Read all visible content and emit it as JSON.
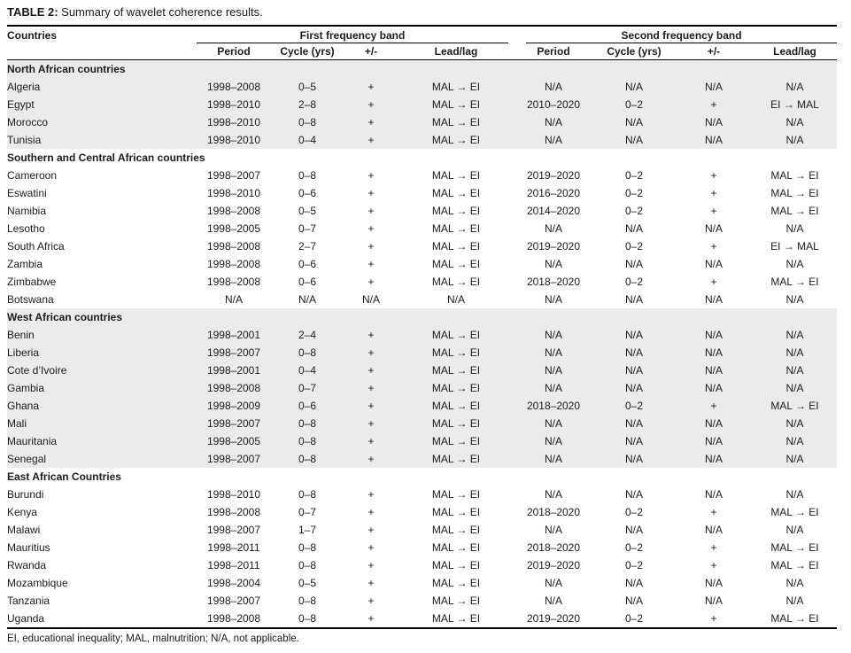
{
  "title": {
    "label": "TABLE 2:",
    "text": " Summary of wavelet coherence results."
  },
  "table": {
    "countries_header": "Countries",
    "band_headers": [
      "First frequency band",
      "Second frequency band"
    ],
    "sub_headers": [
      "Period",
      "Cycle (yrs)",
      "+/-",
      "Lead/lag",
      "Period",
      "Cycle (yrs)",
      "+/-",
      "Lead/lag"
    ],
    "sections": [
      {
        "name": "North African countries",
        "shaded": true,
        "rows": [
          {
            "country": "Algeria",
            "cells": [
              "1998–2008",
              "0–5",
              "+",
              "MAL → EI",
              "N/A",
              "N/A",
              "N/A",
              "N/A"
            ]
          },
          {
            "country": "Egypt",
            "cells": [
              "1998–2010",
              "2–8",
              "+",
              "MAL → EI",
              "2010–2020",
              "0–2",
              "+",
              "EI → MAL"
            ]
          },
          {
            "country": "Morocco",
            "cells": [
              "1998–2010",
              "0–8",
              "+",
              "MAL → EI",
              "N/A",
              "N/A",
              "N/A",
              "N/A"
            ]
          },
          {
            "country": "Tunisia",
            "cells": [
              "1998–2010",
              "0–4",
              "+",
              "MAL → EI",
              "N/A",
              "N/A",
              "N/A",
              "N/A"
            ]
          }
        ]
      },
      {
        "name": "Southern and Central African countries",
        "shaded": false,
        "rows": [
          {
            "country": "Cameroon",
            "cells": [
              "1998–2007",
              "0–8",
              "+",
              "MAL → EI",
              "2019–2020",
              "0–2",
              "+",
              "MAL → EI"
            ]
          },
          {
            "country": "Eswatini",
            "cells": [
              "1998–2010",
              "0–6",
              "+",
              "MAL → EI",
              "2016–2020",
              "0–2",
              "+",
              "MAL → EI"
            ]
          },
          {
            "country": "Namibia",
            "cells": [
              "1998–2008",
              "0–5",
              "+",
              "MAL → EI",
              "2014–2020",
              "0–2",
              "+",
              "MAL → EI"
            ]
          },
          {
            "country": "Lesotho",
            "cells": [
              "1998–2005",
              "0–7",
              "+",
              "MAL → EI",
              "N/A",
              "N/A",
              "N/A",
              "N/A"
            ]
          },
          {
            "country": "South Africa",
            "cells": [
              "1998–2008",
              "2–7",
              "+",
              "MAL → EI",
              "2019–2020",
              "0–2",
              "+",
              "EI → MAL"
            ]
          },
          {
            "country": "Zambia",
            "cells": [
              "1998–2008",
              "0–6",
              "+",
              "MAL → EI",
              "N/A",
              "N/A",
              "N/A",
              "N/A"
            ]
          },
          {
            "country": "Zimbabwe",
            "cells": [
              "1998–2008",
              "0–6",
              "+",
              "MAL → EI",
              "2018–2020",
              "0–2",
              "+",
              "MAL → EI"
            ]
          },
          {
            "country": "Botswana",
            "cells": [
              "N/A",
              "N/A",
              "N/A",
              "N/A",
              "N/A",
              "N/A",
              "N/A",
              "N/A"
            ]
          }
        ]
      },
      {
        "name": "West African countries",
        "shaded": true,
        "rows": [
          {
            "country": "Benin",
            "cells": [
              "1998–2001",
              "2–4",
              "+",
              "MAL → EI",
              "N/A",
              "N/A",
              "N/A",
              "N/A"
            ]
          },
          {
            "country": "Liberia",
            "cells": [
              "1998–2007",
              "0–8",
              "+",
              "MAL → EI",
              "N/A",
              "N/A",
              "N/A",
              "N/A"
            ]
          },
          {
            "country": "Cote d’Ivoire",
            "cells": [
              "1998–2001",
              "0–4",
              "+",
              "MAL → EI",
              "N/A",
              "N/A",
              "N/A",
              "N/A"
            ]
          },
          {
            "country": "Gambia",
            "cells": [
              "1998–2008",
              "0–7",
              "+",
              "MAL → EI",
              "N/A",
              "N/A",
              "N/A",
              "N/A"
            ]
          },
          {
            "country": "Ghana",
            "cells": [
              "1998–2009",
              "0–6",
              "+",
              "MAL → EI",
              "2018–2020",
              "0–2",
              "+",
              "MAL → EI"
            ]
          },
          {
            "country": "Mali",
            "cells": [
              "1998–2007",
              "0–8",
              "+",
              "MAL → EI",
              "N/A",
              "N/A",
              "N/A",
              "N/A"
            ]
          },
          {
            "country": "Mauritania",
            "cells": [
              "1998–2005",
              "0–8",
              "+",
              "MAL → EI",
              "N/A",
              "N/A",
              "N/A",
              "N/A"
            ]
          },
          {
            "country": "Senegal",
            "cells": [
              "1998–2007",
              "0–8",
              "+",
              "MAL → EI",
              "N/A",
              "N/A",
              "N/A",
              "N/A"
            ]
          }
        ]
      },
      {
        "name": "East African Countries",
        "shaded": false,
        "rows": [
          {
            "country": "Burundi",
            "cells": [
              "1998–2010",
              "0–8",
              "+",
              "MAL → EI",
              "N/A",
              "N/A",
              "N/A",
              "N/A"
            ]
          },
          {
            "country": "Kenya",
            "cells": [
              "1998–2008",
              "0–7",
              "+",
              "MAL → EI",
              "2018–2020",
              "0–2",
              "+",
              "MAL → EI"
            ]
          },
          {
            "country": "Malawi",
            "cells": [
              "1998–2007",
              "1–7",
              "+",
              "MAL → EI",
              "N/A",
              "N/A",
              "N/A",
              "N/A"
            ]
          },
          {
            "country": "Mauritius",
            "cells": [
              "1998–2011",
              "0–8",
              "+",
              "MAL → EI",
              "2018–2020",
              "0–2",
              "+",
              "MAL → EI"
            ]
          },
          {
            "country": "Rwanda",
            "cells": [
              "1998–2011",
              "0–8",
              "+",
              "MAL → EI",
              "2019–2020",
              "0–2",
              "+",
              "MAL → EI"
            ]
          },
          {
            "country": "Mozambique",
            "cells": [
              "1998–2004",
              "0–5",
              "+",
              "MAL → EI",
              "N/A",
              "N/A",
              "N/A",
              "N/A"
            ]
          },
          {
            "country": "Tanzania",
            "cells": [
              "1998–2007",
              "0–8",
              "+",
              "MAL → EI",
              "N/A",
              "N/A",
              "N/A",
              "N/A"
            ]
          },
          {
            "country": "Uganda",
            "cells": [
              "1998–2008",
              "0–8",
              "+",
              "MAL → EI",
              "2019–2020",
              "0–2",
              "+",
              "MAL → EI"
            ]
          }
        ]
      }
    ]
  },
  "footnote": "EI, educational inequality; MAL, malnutrition; N/A, not applicable.",
  "colors": {
    "shaded_row": "#ebebeb",
    "rule": "#000000",
    "text": "#1c1c1c"
  }
}
